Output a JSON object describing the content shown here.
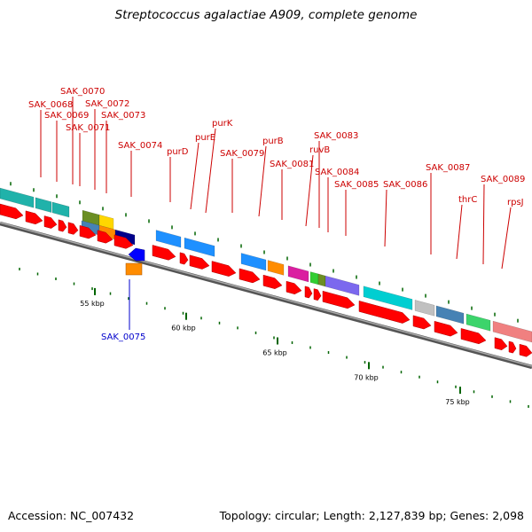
{
  "title": "Streptococcus agalactiae A909, complete genome",
  "footer": {
    "accession": "Accession: NC_007432",
    "summary": "Topology: circular; Length: 2,127,839 bp; Genes: 2,098"
  },
  "colors": {
    "backbone": "#888888",
    "forward_cds": "#ff0000",
    "tick": "#006400",
    "label_forward": "#cc0000",
    "label_reverse": "#0000cc"
  },
  "axis_ticks": [
    "55 kbp",
    "60 kbp",
    "65 kbp",
    "70 kbp",
    "75 kbp"
  ],
  "gene_labels": [
    {
      "text": "SAK_0068",
      "strand": "forward"
    },
    {
      "text": "SAK_0069",
      "strand": "forward"
    },
    {
      "text": "SAK_0070",
      "strand": "forward"
    },
    {
      "text": "SAK_0071",
      "strand": "forward"
    },
    {
      "text": "SAK_0072",
      "strand": "forward"
    },
    {
      "text": "SAK_0073",
      "strand": "forward"
    },
    {
      "text": "SAK_0074",
      "strand": "forward"
    },
    {
      "text": "purD",
      "strand": "forward"
    },
    {
      "text": "purE",
      "strand": "forward"
    },
    {
      "text": "purK",
      "strand": "forward"
    },
    {
      "text": "SAK_0079",
      "strand": "forward"
    },
    {
      "text": "purB",
      "strand": "forward"
    },
    {
      "text": "SAK_0081",
      "strand": "forward"
    },
    {
      "text": "ruvB",
      "strand": "forward"
    },
    {
      "text": "SAK_0083",
      "strand": "forward"
    },
    {
      "text": "SAK_0084",
      "strand": "forward"
    },
    {
      "text": "SAK_0085",
      "strand": "forward"
    },
    {
      "text": "SAK_0086",
      "strand": "forward"
    },
    {
      "text": "SAK_0087",
      "strand": "forward"
    },
    {
      "text": "thrC",
      "strand": "forward"
    },
    {
      "text": "SAK_0089",
      "strand": "forward"
    },
    {
      "text": "rpsJ",
      "strand": "forward"
    },
    {
      "text": "SAK_0075",
      "strand": "reverse"
    }
  ]
}
